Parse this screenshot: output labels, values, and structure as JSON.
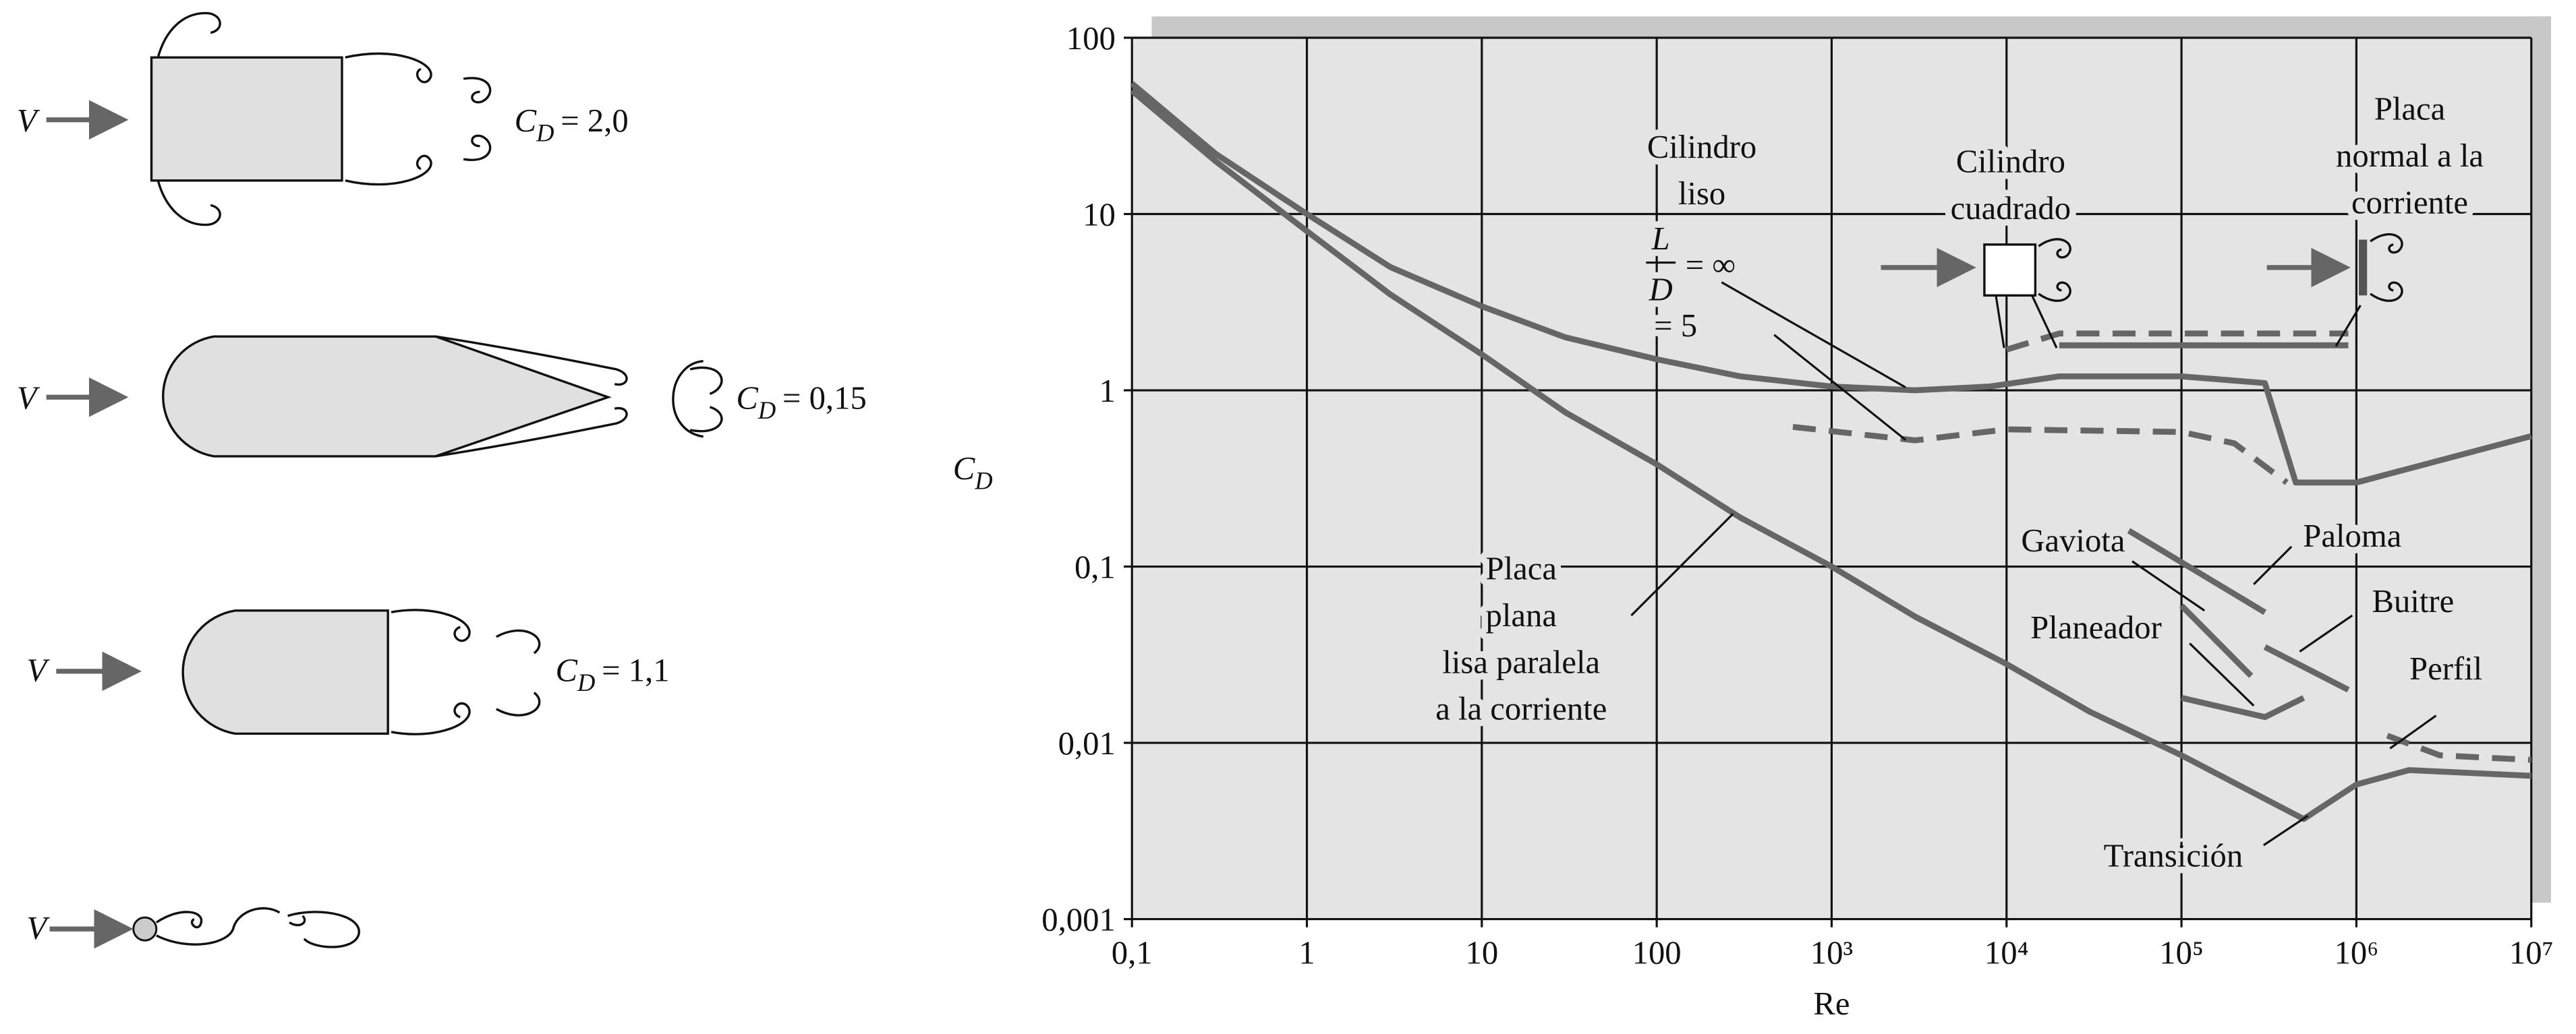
{
  "diagrams": [
    {
      "velocity": "V",
      "coefficient": "C",
      "subscript": "D",
      "value": "= 2,0"
    },
    {
      "velocity": "V",
      "coefficient": "C",
      "subscript": "D",
      "value": "= 0,15"
    },
    {
      "velocity": "V",
      "coefficient": "C",
      "subscript": "D",
      "value": "= 1,1"
    },
    {
      "velocity": "V"
    }
  ],
  "chart_data": {
    "type": "line",
    "xlabel": "Re",
    "ylabel": "C",
    "ylabel_subscript": "D",
    "xscale": "log",
    "yscale": "log",
    "xlim": [
      0.1,
      10000000
    ],
    "ylim": [
      0.001,
      100
    ],
    "xticks": [
      {
        "value": 0.1,
        "label": "0,1"
      },
      1,
      10,
      100,
      {
        "value": 1000,
        "label": "10³"
      },
      {
        "value": 10000,
        "label": "10⁴"
      },
      {
        "value": 100000,
        "label": "10⁵"
      },
      {
        "value": 1000000,
        "label": "10⁶"
      },
      {
        "value": 10000000,
        "label": "10⁷"
      }
    ],
    "yticks": [
      {
        "value": 0.001,
        "label": "0,001"
      },
      {
        "value": 0.01,
        "label": "0,01"
      },
      {
        "value": 0.1,
        "label": "0,1"
      },
      1,
      10,
      100
    ],
    "grid": true,
    "color": "#666666",
    "series": [
      {
        "x": [
          0.1,
          0.3,
          1,
          3,
          10,
          30,
          100,
          300,
          1000,
          3000,
          10000,
          30000,
          100000,
          500000,
          1000000,
          2000000,
          10000000
        ],
        "values": [
          50,
          20,
          8,
          3.5,
          1.6,
          0.75,
          0.38,
          0.19,
          0.1,
          0.052,
          0.028,
          0.015,
          0.0085,
          0.0037,
          0.0058,
          0.007,
          0.0065
        ],
        "dashed": false
      },
      {
        "x": [
          0.1,
          0.3,
          1,
          3,
          10,
          30,
          100,
          300,
          1000,
          3000,
          8000,
          20000,
          100000,
          300000,
          450000,
          1000000,
          10000000
        ],
        "values": [
          55,
          22,
          10,
          5,
          3,
          2,
          1.5,
          1.2,
          1.05,
          1.0,
          1.05,
          1.2,
          1.2,
          1.1,
          0.3,
          0.3,
          0.55
        ],
        "dashed": false
      },
      {
        "x": [
          600,
          3000,
          10000,
          100000,
          200000,
          400000
        ],
        "values": [
          0.62,
          0.52,
          0.6,
          0.58,
          0.5,
          0.3
        ],
        "dashed": true
      },
      {
        "x": [
          10000,
          20000,
          100000,
          900000
        ],
        "values": [
          1.7,
          2.1,
          2.1,
          2.1
        ],
        "dashed": true
      },
      {
        "x": [
          20000,
          900000
        ],
        "values": [
          1.8,
          1.8
        ],
        "dashed": false
      },
      {
        "x": [
          50000,
          300000
        ],
        "values": [
          0.16,
          0.055
        ],
        "dashed": false
      },
      {
        "x": [
          100000,
          250000
        ],
        "values": [
          0.06,
          0.024
        ],
        "dashed": false
      },
      {
        "x": [
          300000,
          900000
        ],
        "values": [
          0.035,
          0.02
        ],
        "dashed": false
      },
      {
        "x": [
          100000,
          300000,
          500000
        ],
        "values": [
          0.018,
          0.014,
          0.018
        ],
        "dashed": false
      },
      {
        "x": [
          1500000,
          3000000,
          10000000
        ],
        "values": [
          0.011,
          0.0085,
          0.008
        ],
        "dashed": true
      }
    ],
    "annotations": [
      "Cilindro\nliso",
      "= 5",
      "Cilindro\ncuadrado",
      "Placa\nnormal a la\ncorriente",
      "Placa\nplana\nlisa paralela\na la corriente",
      "Gaviota",
      "Paloma",
      "Planeador",
      "Buitre",
      "Perfil",
      "Transición"
    ],
    "fraction": {
      "numerator": "L",
      "denominator": "D",
      "value": "= ∞"
    }
  }
}
